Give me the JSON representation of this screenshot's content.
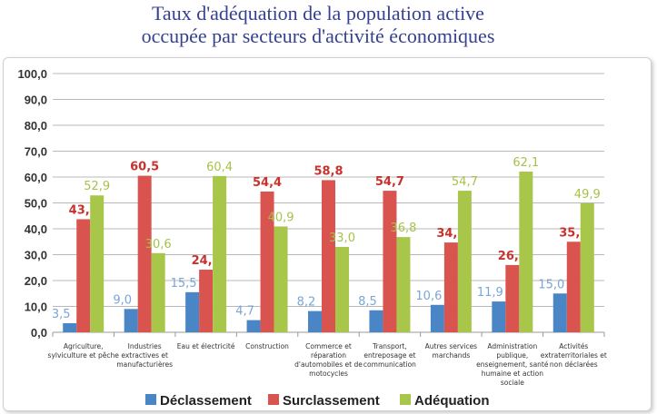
{
  "chart_data": {
    "type": "bar",
    "title": [
      "Taux d'adéquation de la population active",
      "occupée par secteurs d'activité économiques"
    ],
    "categories": [
      [
        "Agriculture,",
        "sylviculture et pêche"
      ],
      [
        "Industries",
        "extractives et",
        "manufacturières"
      ],
      [
        "Eau et électricité"
      ],
      [
        "Construction"
      ],
      [
        "Commerce et",
        "réparation",
        "d'automobiles et de",
        "motocycles"
      ],
      [
        "Transport,",
        "entreposage et",
        "communication"
      ],
      [
        "Autres services",
        "marchands"
      ],
      [
        "Administration",
        "publique,",
        "enseignement, santé",
        "humaine et action",
        "sociale"
      ],
      [
        "Activités",
        "extraterritoriales et",
        "non déclarées"
      ]
    ],
    "series": [
      {
        "name": "Déclassement",
        "color": "#4a86c5",
        "label_color": "#7aa6d6",
        "values": [
          3.5,
          9.0,
          15.5,
          4.7,
          8.2,
          8.5,
          10.6,
          11.9,
          15.0
        ]
      },
      {
        "name": "Surclassement",
        "color": "#d9534f",
        "label_color": "#c8312c",
        "values": [
          43.7,
          60.5,
          24.2,
          54.4,
          58.8,
          54.7,
          34.7,
          26.0,
          35.0
        ]
      },
      {
        "name": "Adéquation",
        "color": "#a8c64a",
        "label_color": "#a6c24a",
        "values": [
          52.9,
          30.6,
          60.4,
          40.9,
          33.0,
          36.8,
          54.7,
          62.1,
          49.9
        ]
      }
    ],
    "yticks": [
      "0,0",
      "10,0",
      "20,0",
      "30,0",
      "40,0",
      "50,0",
      "60,0",
      "70,0",
      "80,0",
      "90,0",
      "100,0"
    ],
    "ylim": [
      0,
      100
    ],
    "grid": true,
    "legend": "bottom"
  }
}
